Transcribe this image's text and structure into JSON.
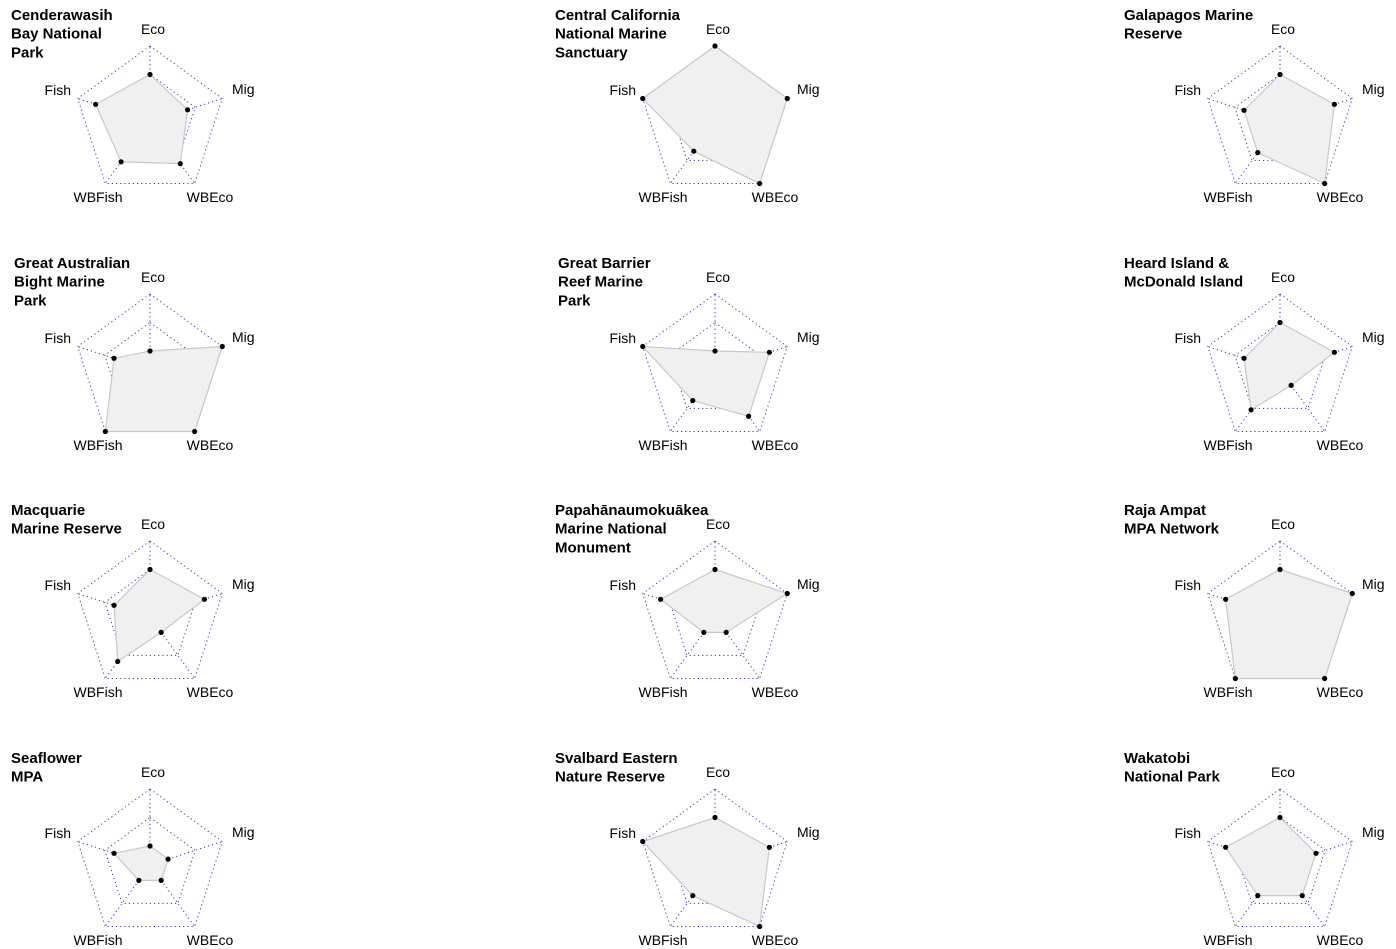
{
  "chart_data": {
    "type": "radar",
    "axes": [
      "Eco",
      "Mig",
      "WBEco",
      "WBFish",
      "Fish"
    ],
    "rlim": [
      0,
      1
    ],
    "grid_levels": 3,
    "grid_style": "dotted",
    "colors": {
      "fill": "#f0f0f0",
      "outline": "#c8c8c8",
      "point": "#000000",
      "grid": "#3a3aa8"
    },
    "panels": [
      {
        "title": [
          "Cenderawasih",
          "Bay National",
          "Park"
        ],
        "values": {
          "Eco": 0.5,
          "Mig": 0.36,
          "WBEco": 0.57,
          "WBFish": 0.53,
          "Fish": 0.67
        }
      },
      {
        "title": [
          "Central California",
          "National Marine",
          "Sanctuary"
        ],
        "values": {
          "Eco": 1.0,
          "Mig": 1.0,
          "WBEco": 1.0,
          "WBFish": 0.3,
          "Fish": 1.0
        }
      },
      {
        "title": [
          "Galapagos Marine",
          "Reserve"
        ],
        "values": {
          "Eco": 0.5,
          "Mig": 0.67,
          "WBEco": 1.0,
          "WBFish": 0.33,
          "Fish": 0.33
        }
      },
      {
        "title": [
          "Great Australian",
          "Bight Marine",
          "Park"
        ],
        "values": {
          "Eco": 0.0,
          "Mig": 1.0,
          "WBEco": 1.0,
          "WBFish": 1.0,
          "Fish": 0.33
        }
      },
      {
        "title": [
          "Great Barrier",
          "Reef Marine",
          "Park"
        ],
        "values": {
          "Eco": 0.0,
          "Mig": 0.67,
          "WBEco": 0.67,
          "WBFish": 0.33,
          "Fish": 1.0
        }
      },
      {
        "title": [
          "Heard Island &",
          "McDonald Island"
        ],
        "values": {
          "Eco": 0.5,
          "Mig": 0.67,
          "WBEco": 0.0,
          "WBFish": 0.53,
          "Fish": 0.33
        }
      },
      {
        "title": [
          "Macquarie",
          "Marine Reserve"
        ],
        "values": {
          "Eco": 0.5,
          "Mig": 0.67,
          "WBEco": 0.0,
          "WBFish": 0.63,
          "Fish": 0.33
        }
      },
      {
        "title": [
          "Papahānaumokuākea",
          "Marine National",
          "Monument"
        ],
        "values": {
          "Eco": 0.5,
          "Mig": 1.0,
          "WBEco": 0.0,
          "WBFish": 0.0,
          "Fish": 0.67
        }
      },
      {
        "title": [
          "Raja Ampat",
          "MPA Network"
        ],
        "values": {
          "Eco": 0.5,
          "Mig": 1.0,
          "WBEco": 1.0,
          "WBFish": 1.0,
          "Fish": 0.67
        }
      },
      {
        "title": [
          "Seaflower",
          "MPA"
        ],
        "values": {
          "Eco": 0.0,
          "Mig": 0.0,
          "WBEco": 0.0,
          "WBFish": 0.0,
          "Fish": 0.33
        }
      },
      {
        "title": [
          "Svalbard Eastern",
          "Nature Reserve"
        ],
        "values": {
          "Eco": 0.5,
          "Mig": 0.67,
          "WBEco": 1.0,
          "WBFish": 0.33,
          "Fish": 1.0
        }
      },
      {
        "title": [
          "Wakatobi",
          "National Park"
        ],
        "values": {
          "Eco": 0.5,
          "Mig": 0.33,
          "WBEco": 0.33,
          "WBFish": 0.33,
          "Fish": 0.67
        }
      }
    ]
  }
}
